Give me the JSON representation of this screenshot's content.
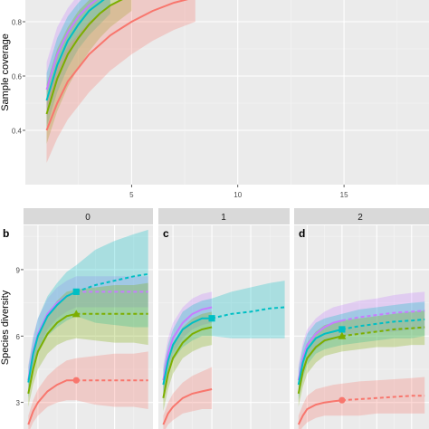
{
  "chart_data": [
    {
      "type": "line",
      "panel": "top",
      "ylabel": "Sample coverage",
      "xlabel": "",
      "xlim": [
        0,
        19
      ],
      "ylim": [
        0.2,
        0.88
      ],
      "x_ticks": [
        "5",
        "10",
        "15"
      ],
      "x_tick_values": [
        5,
        10,
        15
      ],
      "y_ticks": [
        "0.4",
        "0.6",
        "0.8"
      ],
      "y_tick_values": [
        0.4,
        0.6,
        0.8
      ],
      "grid": true,
      "series": [
        {
          "color": "#C77CFF",
          "fill": "#C77CFF",
          "x": [
            1,
            1.5,
            2,
            2.5,
            3,
            3.5,
            4
          ],
          "y": [
            0.55,
            0.68,
            0.76,
            0.82,
            0.86,
            0.89,
            0.92
          ],
          "lower": [
            0.45,
            0.58,
            0.67,
            0.74,
            0.79,
            0.83,
            0.86
          ],
          "upper": [
            0.65,
            0.78,
            0.85,
            0.9,
            0.93,
            0.95,
            0.97
          ]
        },
        {
          "color": "#00BFC4",
          "fill": "#00BFC4",
          "x": [
            1,
            1.5,
            2,
            2.5,
            3,
            3.5,
            4
          ],
          "y": [
            0.51,
            0.64,
            0.73,
            0.79,
            0.84,
            0.87,
            0.9
          ],
          "lower": [
            0.41,
            0.54,
            0.63,
            0.7,
            0.75,
            0.79,
            0.83
          ],
          "upper": [
            0.61,
            0.74,
            0.82,
            0.87,
            0.91,
            0.93,
            0.95
          ]
        },
        {
          "color": "#7CAE00",
          "fill": "#7CAE00",
          "x": [
            1,
            1.5,
            2,
            2.5,
            3,
            3.5,
            4,
            4.5,
            5
          ],
          "y": [
            0.46,
            0.59,
            0.68,
            0.74,
            0.79,
            0.83,
            0.86,
            0.88,
            0.9
          ],
          "lower": [
            0.35,
            0.47,
            0.56,
            0.63,
            0.69,
            0.74,
            0.78,
            0.81,
            0.84
          ],
          "upper": [
            0.57,
            0.7,
            0.78,
            0.84,
            0.88,
            0.91,
            0.93,
            0.95,
            0.96
          ]
        },
        {
          "color": "#F8766D",
          "fill": "#F8766D",
          "x": [
            1,
            1.5,
            2,
            3,
            4,
            5,
            6,
            7,
            8
          ],
          "y": [
            0.4,
            0.5,
            0.58,
            0.68,
            0.75,
            0.8,
            0.84,
            0.87,
            0.89
          ],
          "lower": [
            0.28,
            0.37,
            0.44,
            0.54,
            0.62,
            0.68,
            0.73,
            0.77,
            0.8
          ],
          "upper": [
            0.52,
            0.63,
            0.71,
            0.8,
            0.86,
            0.9,
            0.93,
            0.95,
            0.96
          ]
        }
      ]
    },
    {
      "type": "line",
      "panel": "b",
      "strip": "0",
      "ylabel": "Species diversity",
      "xlim": [
        0.5,
        14
      ],
      "ylim": [
        1.8,
        11
      ],
      "y_ticks": [
        "3",
        "6",
        "9"
      ],
      "y_tick_values": [
        3,
        6,
        9
      ],
      "grid": true,
      "reference_x": 6,
      "series": [
        {
          "color": "#C77CFF",
          "marker": "none",
          "x": [
            1,
            1.5,
            2,
            3,
            4,
            5,
            6,
            8,
            10,
            12,
            13.5
          ],
          "y": [
            4.0,
            5.3,
            6.1,
            7.0,
            7.5,
            7.8,
            8.0,
            8.0,
            8.0,
            8.0,
            8.0
          ],
          "lower": [
            3.3,
            4.6,
            5.4,
            6.3,
            6.8,
            7.1,
            7.3,
            7.3,
            7.3,
            7.3,
            7.3
          ],
          "upper": [
            4.7,
            6.0,
            6.8,
            7.7,
            8.2,
            8.5,
            8.7,
            8.7,
            8.7,
            8.7,
            8.7
          ]
        },
        {
          "color": "#00BFC4",
          "marker": "square",
          "x": [
            1,
            1.5,
            2,
            3,
            4,
            5,
            6,
            8,
            10,
            12,
            13.5
          ],
          "y": [
            3.9,
            5.2,
            6.0,
            6.9,
            7.4,
            7.8,
            8.0,
            8.3,
            8.5,
            8.7,
            8.8
          ],
          "lower": [
            3.2,
            4.5,
            5.2,
            6.0,
            6.4,
            6.7,
            6.9,
            6.6,
            6.5,
            6.4,
            6.4
          ],
          "upper": [
            4.6,
            5.9,
            6.8,
            7.8,
            8.4,
            8.9,
            9.2,
            9.9,
            10.3,
            10.6,
            10.8
          ]
        },
        {
          "color": "#7CAE00",
          "marker": "triangle",
          "x": [
            1,
            1.5,
            2,
            3,
            4,
            5,
            6,
            8,
            10,
            12,
            13.5
          ],
          "y": [
            3.4,
            4.5,
            5.3,
            6.1,
            6.6,
            6.9,
            7.0,
            7.0,
            7.0,
            7.0,
            7.0
          ],
          "lower": [
            2.8,
            3.8,
            4.5,
            5.2,
            5.6,
            5.8,
            5.9,
            5.8,
            5.7,
            5.7,
            5.6
          ],
          "upper": [
            4.0,
            5.2,
            6.1,
            7.0,
            7.6,
            8.0,
            8.1,
            8.2,
            8.3,
            8.3,
            8.4
          ]
        },
        {
          "color": "#F8766D",
          "marker": "circle",
          "x": [
            1,
            1.5,
            2,
            3,
            4,
            5,
            6,
            8,
            10,
            12,
            13.5
          ],
          "y": [
            2.0,
            2.6,
            3.0,
            3.5,
            3.8,
            4.0,
            4.0,
            4.0,
            4.0,
            4.0,
            4.0
          ],
          "lower": [
            1.6,
            2.1,
            2.4,
            2.8,
            3.0,
            3.1,
            3.1,
            2.9,
            2.8,
            2.8,
            2.7
          ],
          "upper": [
            2.4,
            3.1,
            3.6,
            4.2,
            4.6,
            4.9,
            5.0,
            5.1,
            5.2,
            5.2,
            5.3
          ]
        }
      ]
    },
    {
      "type": "line",
      "panel": "c",
      "strip": "1",
      "xlim": [
        0.5,
        14
      ],
      "ylim": [
        1.8,
        11
      ],
      "grid": true,
      "reference_x": 6,
      "series": [
        {
          "color": "#C77CFF",
          "marker": "none",
          "x": [
            1,
            1.5,
            2,
            3,
            4,
            5,
            6
          ],
          "y": [
            4.0,
            5.2,
            5.9,
            6.6,
            7.0,
            7.2,
            7.3
          ],
          "lower": [
            3.3,
            4.5,
            5.2,
            5.9,
            6.3,
            6.5,
            6.6
          ],
          "upper": [
            4.7,
            5.9,
            6.6,
            7.3,
            7.7,
            7.9,
            8.0
          ]
        },
        {
          "color": "#00BFC4",
          "marker": "square",
          "x": [
            1,
            1.5,
            2,
            3,
            4,
            5,
            6,
            8,
            10,
            12,
            13.5
          ],
          "y": [
            3.8,
            4.9,
            5.6,
            6.3,
            6.6,
            6.8,
            6.8,
            7.0,
            7.1,
            7.25,
            7.3
          ],
          "lower": [
            3.1,
            4.2,
            4.9,
            5.5,
            5.8,
            6.0,
            6.0,
            5.9,
            5.9,
            5.9,
            5.9
          ],
          "upper": [
            4.5,
            5.6,
            6.3,
            7.1,
            7.4,
            7.6,
            7.7,
            8.0,
            8.2,
            8.4,
            8.5
          ]
        },
        {
          "color": "#7CAE00",
          "marker": "none",
          "x": [
            1,
            1.5,
            2,
            3,
            4,
            5,
            6
          ],
          "y": [
            3.2,
            4.3,
            5.0,
            5.7,
            6.1,
            6.3,
            6.4
          ],
          "lower": [
            2.6,
            3.6,
            4.3,
            5.0,
            5.3,
            5.5,
            5.6
          ],
          "upper": [
            3.8,
            5.0,
            5.7,
            6.4,
            6.8,
            7.0,
            7.1
          ]
        },
        {
          "color": "#F8766D",
          "marker": "none",
          "x": [
            1,
            1.5,
            2,
            3,
            4,
            5,
            6
          ],
          "y": [
            2.0,
            2.5,
            2.8,
            3.2,
            3.4,
            3.5,
            3.6
          ],
          "lower": [
            1.6,
            2.0,
            2.2,
            2.5,
            2.6,
            2.7,
            2.7
          ],
          "upper": [
            2.4,
            3.0,
            3.4,
            3.9,
            4.2,
            4.4,
            4.6
          ]
        }
      ]
    },
    {
      "type": "line",
      "panel": "d",
      "strip": "2",
      "xlim": [
        0.5,
        16
      ],
      "ylim": [
        1.8,
        11
      ],
      "grid": true,
      "reference_x": 6,
      "series": [
        {
          "color": "#C77CFF",
          "marker": "none",
          "x": [
            1,
            1.5,
            2,
            3,
            4,
            5,
            6,
            8,
            10,
            12,
            14,
            15.5
          ],
          "y": [
            4.0,
            5.0,
            5.6,
            6.1,
            6.4,
            6.6,
            6.7,
            6.85,
            6.95,
            7.05,
            7.1,
            7.15
          ],
          "lower": [
            3.3,
            4.3,
            4.9,
            5.4,
            5.7,
            5.9,
            6.0,
            6.1,
            6.2,
            6.2,
            6.3,
            6.3
          ],
          "upper": [
            4.7,
            5.7,
            6.3,
            6.8,
            7.1,
            7.3,
            7.4,
            7.6,
            7.7,
            7.85,
            7.95,
            8.0
          ]
        },
        {
          "color": "#00BFC4",
          "marker": "square",
          "x": [
            1,
            1.5,
            2,
            3,
            4,
            5,
            6,
            8,
            10,
            12,
            14,
            15.5
          ],
          "y": [
            3.8,
            4.8,
            5.4,
            5.9,
            6.1,
            6.2,
            6.3,
            6.45,
            6.55,
            6.65,
            6.7,
            6.75
          ],
          "lower": [
            3.1,
            4.1,
            4.7,
            5.2,
            5.4,
            5.5,
            5.6,
            5.7,
            5.8,
            5.9,
            5.9,
            6.0
          ],
          "upper": [
            4.5,
            5.5,
            6.1,
            6.6,
            6.8,
            6.9,
            7.0,
            7.2,
            7.3,
            7.4,
            7.5,
            7.55
          ]
        },
        {
          "color": "#7CAE00",
          "marker": "triangle",
          "x": [
            1,
            1.5,
            2,
            3,
            4,
            5,
            6,
            8,
            10,
            12,
            14,
            15.5
          ],
          "y": [
            3.4,
            4.4,
            5.0,
            5.5,
            5.8,
            5.9,
            6.0,
            6.1,
            6.2,
            6.3,
            6.35,
            6.4
          ],
          "lower": [
            2.8,
            3.7,
            4.3,
            4.8,
            5.1,
            5.2,
            5.3,
            5.4,
            5.5,
            5.5,
            5.6,
            5.6
          ],
          "upper": [
            4.0,
            5.1,
            5.7,
            6.2,
            6.5,
            6.6,
            6.7,
            6.8,
            6.9,
            7.0,
            7.1,
            7.15
          ]
        },
        {
          "color": "#F8766D",
          "marker": "circle",
          "x": [
            1,
            1.5,
            2,
            3,
            4,
            5,
            6,
            8,
            10,
            12,
            14,
            15.5
          ],
          "y": [
            2.0,
            2.4,
            2.7,
            2.9,
            3.0,
            3.05,
            3.1,
            3.15,
            3.2,
            3.25,
            3.3,
            3.3
          ],
          "lower": [
            1.6,
            1.9,
            2.1,
            2.3,
            2.4,
            2.4,
            2.4,
            2.4,
            2.5,
            2.5,
            2.5,
            2.5
          ],
          "upper": [
            2.4,
            2.9,
            3.3,
            3.6,
            3.7,
            3.8,
            3.85,
            3.95,
            4.0,
            4.05,
            4.1,
            4.15
          ]
        }
      ]
    }
  ],
  "panel_tags": [
    "b",
    "c",
    "d"
  ],
  "strips": [
    "0",
    "1",
    "2"
  ]
}
